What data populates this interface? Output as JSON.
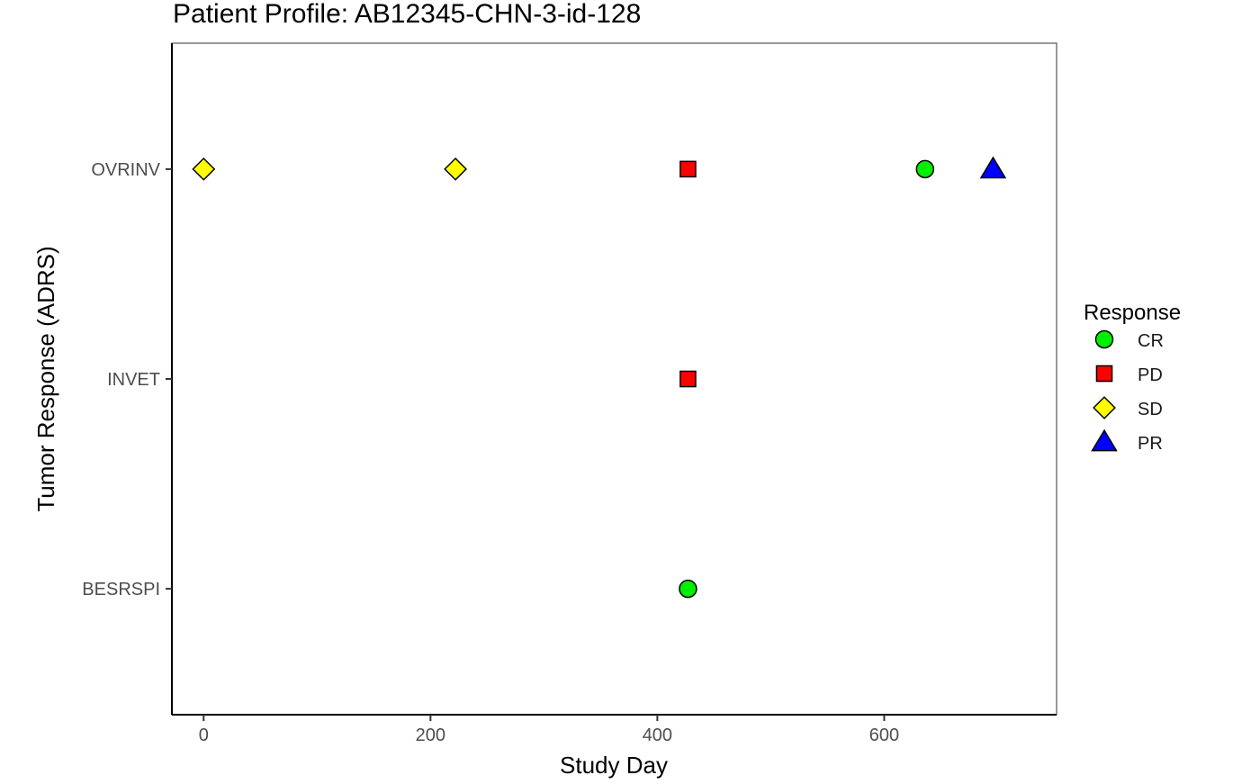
{
  "chart_data": {
    "type": "scatter",
    "title": "Patient Profile:  AB12345-CHN-3-id-128",
    "xlabel": "Study Day",
    "ylabel": "Tumor Response (ADRS)",
    "xlim": [
      -28,
      752
    ],
    "x_ticks": [
      0,
      200,
      400,
      600
    ],
    "y_categories": [
      "BESRSPI",
      "INVET",
      "OVRINV"
    ],
    "grid": false,
    "legend": {
      "title": "Response",
      "placement": "right",
      "entries": [
        {
          "label": "CR",
          "shape": "circle",
          "color": "#00ee00"
        },
        {
          "label": "PD",
          "shape": "square",
          "color": "#ff0000"
        },
        {
          "label": "SD",
          "shape": "diamond",
          "color": "#ffff00"
        },
        {
          "label": "PR",
          "shape": "triangle",
          "color": "#0000ff"
        }
      ]
    },
    "points": [
      {
        "x": 0,
        "y": "OVRINV",
        "response": "SD"
      },
      {
        "x": 222,
        "y": "OVRINV",
        "response": "SD"
      },
      {
        "x": 427,
        "y": "OVRINV",
        "response": "PD"
      },
      {
        "x": 636,
        "y": "OVRINV",
        "response": "CR"
      },
      {
        "x": 696,
        "y": "OVRINV",
        "response": "PR"
      },
      {
        "x": 427,
        "y": "INVET",
        "response": "PD"
      },
      {
        "x": 427,
        "y": "BESRSPI",
        "response": "CR"
      }
    ]
  }
}
